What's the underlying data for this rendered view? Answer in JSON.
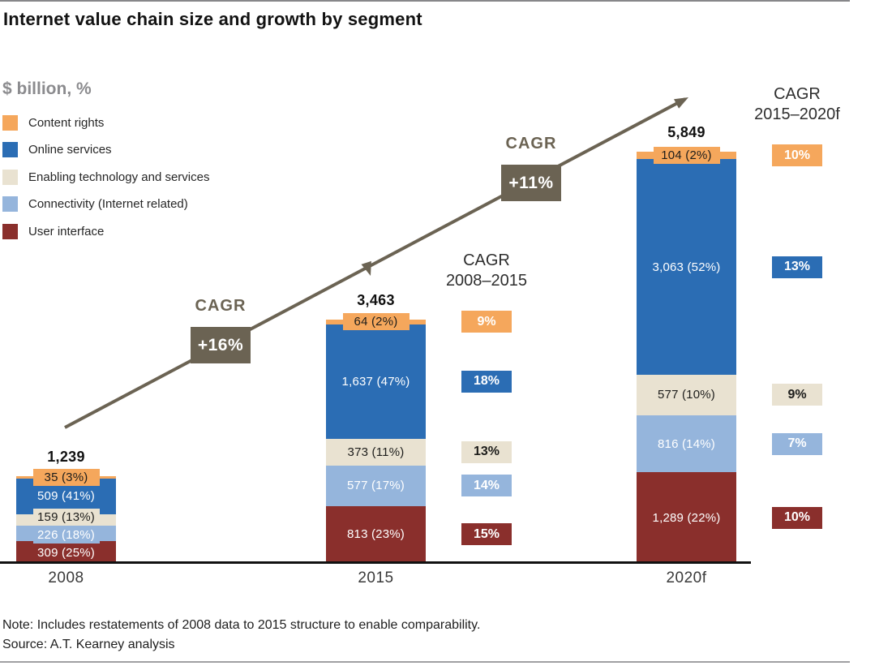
{
  "title": "Internet value chain size and growth by segment",
  "unit_label": "$ billion, %",
  "chart_data": {
    "type": "bar",
    "stacked": true,
    "unit": "$ billion",
    "categories": [
      "2008",
      "2015",
      "2020f"
    ],
    "totals": [
      1239,
      3463,
      5849
    ],
    "total_labels": [
      "1,239",
      "3,463",
      "5,849"
    ],
    "series": [
      {
        "name": "Content rights",
        "color": "#F5A75C",
        "label_text_color": "#1d1d1b",
        "cagr_text_color": "#ffffff",
        "values": [
          35,
          64,
          104
        ],
        "labels": [
          "35 (3%)",
          "64 (2%)",
          "104 (2%)"
        ],
        "cagr": [
          "9%",
          "10%"
        ]
      },
      {
        "name": "Online services",
        "color": "#2B6DB4",
        "label_text_color": "#ffffff",
        "cagr_text_color": "#ffffff",
        "values": [
          509,
          1637,
          3063
        ],
        "labels": [
          "509 (41%)",
          "1,637 (47%)",
          "3,063 (52%)"
        ],
        "cagr": [
          "18%",
          "13%"
        ]
      },
      {
        "name": "Enabling technology and services",
        "color": "#E9E2D1",
        "label_text_color": "#1d1d1b",
        "cagr_text_color": "#1d1d1b",
        "values": [
          159,
          373,
          577
        ],
        "labels": [
          "159 (13%)",
          "373 (11%)",
          "577 (10%)"
        ],
        "cagr": [
          "13%",
          "9%"
        ]
      },
      {
        "name": "Connectivity (Internet related)",
        "color": "#95B5DC",
        "label_text_color": "#ffffff",
        "cagr_text_color": "#ffffff",
        "values": [
          226,
          577,
          816
        ],
        "labels": [
          "226 (18%)",
          "577 (17%)",
          "816 (14%)"
        ],
        "cagr": [
          "14%",
          "7%"
        ]
      },
      {
        "name": "User interface",
        "color": "#8A2F2C",
        "label_text_color": "#ffffff",
        "cagr_text_color": "#ffffff",
        "values": [
          309,
          813,
          1289
        ],
        "labels": [
          "309 (25%)",
          "813 (23%)",
          "1,289 (22%)"
        ],
        "cagr": [
          "15%",
          "10%"
        ]
      }
    ],
    "growth_arrows": [
      {
        "label": "CAGR",
        "value": "+16%"
      },
      {
        "label": "CAGR",
        "value": "+11%"
      }
    ],
    "cagr_columns": [
      {
        "line1": "CAGR",
        "line2": "2008–2015"
      },
      {
        "line1": "CAGR",
        "line2": "2015–2020f"
      }
    ],
    "arrow_color": "#6B6353",
    "legend_position": "top-left",
    "grid": false
  },
  "footer": {
    "note": "Note: Includes restatements of 2008 data to 2015 structure to enable comparability.",
    "source": "Source: A.T. Kearney analysis"
  }
}
